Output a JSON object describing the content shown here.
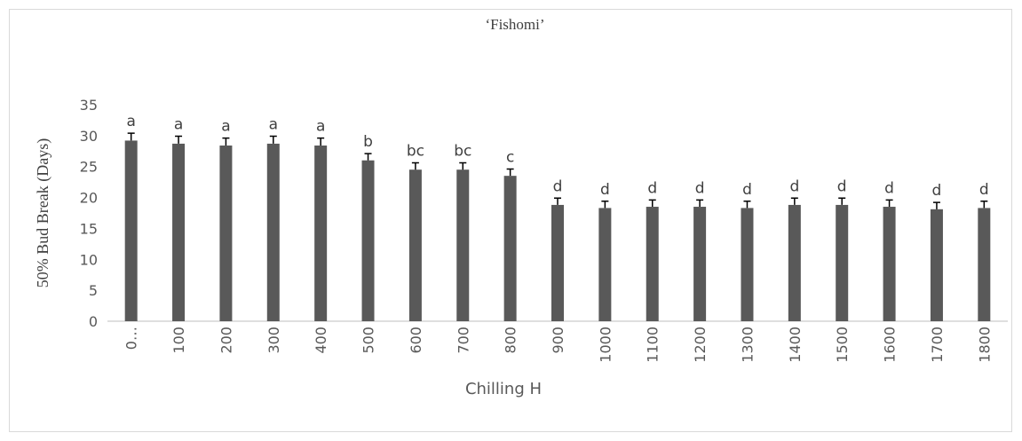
{
  "chart_data": {
    "type": "bar",
    "title": "‘Fishomi’",
    "x_label": "Chilling H",
    "y_label": "50% Bud Break (Days)",
    "categories": [
      "0…",
      "100",
      "200",
      "300",
      "400",
      "500",
      "600",
      "700",
      "800",
      "900",
      "1000",
      "1100",
      "1200",
      "1300",
      "1400",
      "1500",
      "1600",
      "1700",
      "1800"
    ],
    "values": [
      29.2,
      28.7,
      28.4,
      28.7,
      28.4,
      26,
      24.5,
      24.5,
      23.5,
      18.8,
      18.3,
      18.5,
      18.5,
      18.3,
      18.8,
      18.8,
      18.5,
      18.1,
      18.3
    ],
    "errors": [
      1.2,
      1.2,
      1.2,
      1.2,
      1.2,
      1.1,
      1.1,
      1.1,
      1.1,
      1.1,
      1.1,
      1.1,
      1.1,
      1.1,
      1.1,
      1.1,
      1.1,
      1.1,
      1.1
    ],
    "annotations": [
      "a",
      "a",
      "a",
      "a",
      "a",
      "b",
      "bc",
      "bc",
      "c",
      "d",
      "d",
      "d",
      "d",
      "d",
      "d",
      "d",
      "d",
      "d",
      "d"
    ],
    "color": "#595959",
    "ylim": [
      0,
      35
    ],
    "yticks": [
      0,
      5,
      10,
      15,
      20,
      25,
      30,
      35
    ],
    "grid": false
  }
}
